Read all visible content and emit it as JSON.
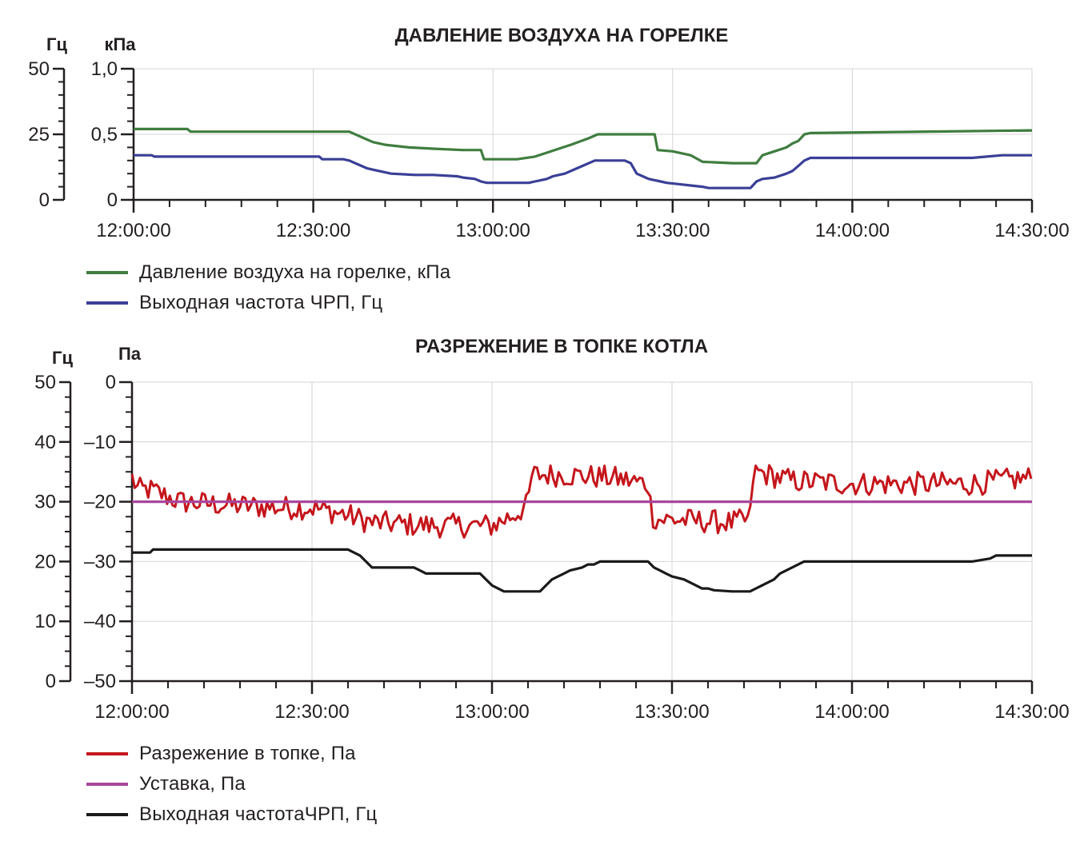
{
  "chart_data": [
    {
      "type": "line",
      "title": "ДАВЛЕНИЕ ВОЗДУХА НА ГОРЕЛКЕ",
      "left_axis_unit": "Гц",
      "right_axis_unit": "кПа",
      "x_ticks": [
        "12:00:00",
        "12:30:00",
        "13:00:00",
        "13:30:00",
        "14:00:00",
        "14:30:00"
      ],
      "x_range_minutes": [
        0,
        150
      ],
      "ylim_hz": [
        0,
        50
      ],
      "yticks_hz": [
        "50",
        "25",
        "0"
      ],
      "ylim_kpa": [
        0,
        1.0
      ],
      "yticks_kpa": [
        "1,0",
        "0,5",
        "0"
      ],
      "grid": true,
      "legend_position": "bottom-left",
      "series": [
        {
          "name": "Давление воздуха на горелке, кПа",
          "color": "#3f7d3f",
          "axis": "kpa",
          "x_minutes": [
            0,
            9,
            9.5,
            36,
            39,
            40,
            42,
            46,
            50,
            55,
            58,
            58.5,
            64,
            67,
            69,
            71,
            73,
            76,
            77.5,
            86,
            87,
            87.5,
            90,
            93,
            95,
            100,
            104,
            105,
            107,
            109,
            110,
            111,
            112,
            113,
            150
          ],
          "values": [
            0.54,
            0.54,
            0.52,
            0.52,
            0.46,
            0.44,
            0.42,
            0.4,
            0.39,
            0.38,
            0.38,
            0.31,
            0.31,
            0.33,
            0.36,
            0.39,
            0.42,
            0.47,
            0.5,
            0.5,
            0.5,
            0.38,
            0.37,
            0.34,
            0.29,
            0.28,
            0.28,
            0.34,
            0.37,
            0.4,
            0.43,
            0.45,
            0.5,
            0.51,
            0.53
          ]
        },
        {
          "name": "Выходная частота ЧРП, Гц",
          "color": "#3a3f96",
          "axis": "hz",
          "x_minutes": [
            0,
            3,
            3.5,
            31,
            31.5,
            35,
            36,
            37,
            38,
            39,
            40,
            41,
            42,
            43,
            47,
            50,
            54,
            55,
            57,
            58,
            59,
            60,
            61,
            62,
            63,
            66,
            67,
            68,
            69,
            70,
            71,
            72,
            73,
            74,
            75,
            77,
            82,
            83,
            84,
            85,
            86,
            87,
            88,
            89,
            91,
            93,
            95,
            96,
            97,
            98,
            99,
            103,
            104,
            105,
            107,
            109,
            110,
            111,
            112,
            113,
            114,
            120,
            125,
            130,
            135,
            140,
            145,
            150
          ],
          "values": [
            17,
            17,
            16.5,
            16.5,
            15.5,
            15.5,
            15,
            14,
            13,
            12,
            11.5,
            11,
            10.5,
            10,
            9.5,
            9.5,
            9,
            8.5,
            8,
            7,
            6.5,
            6.5,
            6.5,
            6.5,
            6.5,
            6.5,
            7,
            7.5,
            8,
            9,
            9.5,
            10,
            11,
            12,
            13,
            15,
            15,
            14,
            10,
            9,
            8,
            7.5,
            7,
            6.5,
            6,
            5.5,
            5,
            4.5,
            4.5,
            4.5,
            4.5,
            4.5,
            7,
            8,
            8.5,
            10,
            11,
            13,
            15,
            16,
            16,
            16,
            16,
            16,
            16,
            16,
            17,
            17
          ]
        }
      ]
    },
    {
      "type": "line",
      "title": "РАЗРЕЖЕНИЕ В ТОПКЕ КОТЛА",
      "left_axis_unit": "Гц",
      "right_axis_unit": "Па",
      "x_ticks": [
        "12:00:00",
        "12:30:00",
        "13:00:00",
        "13:30:00",
        "14:00:00",
        "14:30:00"
      ],
      "x_range_minutes": [
        0,
        150
      ],
      "ylim_hz": [
        0,
        50
      ],
      "yticks_hz": [
        "50",
        "40",
        "30",
        "20",
        "10",
        "0"
      ],
      "ylim_pa": [
        -50,
        0
      ],
      "yticks_pa": [
        "0",
        "–10",
        "–20",
        "–30",
        "–40",
        "–50"
      ],
      "grid": true,
      "legend_position": "bottom-left",
      "series": [
        {
          "name": "Разрежение в топке, Па",
          "color": "#c4161c",
          "axis": "pa",
          "noise_amplitude_pa": 2.0,
          "x_minutes": [
            0,
            1,
            3,
            8,
            15,
            25,
            30,
            35,
            40,
            50,
            58,
            60,
            62,
            64,
            66,
            66.5,
            67,
            72,
            80,
            86,
            86.5,
            87,
            90,
            100,
            103,
            103.5,
            104,
            110,
            120,
            130,
            140,
            150
          ],
          "values": [
            -16,
            -18,
            -18,
            -20,
            -20.5,
            -21,
            -21,
            -22,
            -23.5,
            -24,
            -24,
            -24,
            -23,
            -22,
            -20.5,
            -16,
            -15.5,
            -15.5,
            -16,
            -17,
            -21,
            -23,
            -23,
            -23.5,
            -23,
            -16,
            -15,
            -16.5,
            -17,
            -17,
            -17,
            -16
          ]
        },
        {
          "name": "Уставка, Па",
          "color": "#a8469d",
          "axis": "pa",
          "x_minutes": [
            0,
            150
          ],
          "values": [
            -20,
            -20
          ]
        },
        {
          "name": "Выходная частотаЧРП, Гц",
          "color": "#1a1a1a",
          "axis": "hz",
          "x_minutes": [
            0,
            3,
            3.5,
            36,
            37,
            38,
            39,
            40,
            47,
            48,
            49,
            58,
            59,
            60,
            61,
            62,
            68,
            69,
            70,
            71,
            72,
            73,
            75,
            76,
            77,
            78,
            80,
            81,
            86,
            87,
            88,
            89,
            90,
            92,
            93,
            94,
            95,
            96,
            97,
            100,
            101,
            103,
            104,
            105,
            106,
            107,
            108,
            110,
            112,
            120,
            130,
            140,
            143,
            144,
            150
          ],
          "values": [
            21.5,
            21.5,
            22,
            22,
            21.5,
            21,
            20,
            19,
            19,
            18.5,
            18,
            18,
            17,
            16,
            15.5,
            15,
            15,
            16,
            17,
            17.5,
            18,
            18.5,
            19,
            19.5,
            19.5,
            20,
            20,
            20,
            20,
            19,
            18.5,
            18,
            17.5,
            17,
            16.5,
            16,
            15.5,
            15.5,
            15.2,
            15,
            15,
            15,
            15.5,
            16,
            16.5,
            17,
            18,
            19,
            20,
            20,
            20,
            20,
            20.5,
            21,
            21
          ]
        }
      ]
    }
  ]
}
